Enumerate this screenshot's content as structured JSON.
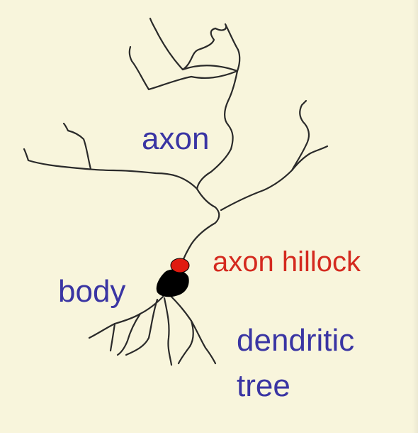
{
  "labels": {
    "axon": "axon",
    "axon_hillock": "axon hillock",
    "body": "body",
    "dendritic": "dendritic",
    "tree": "tree"
  },
  "colors": {
    "background": "#f8f5dc",
    "label_blue": "#3a35a3",
    "label_red": "#d42a1f",
    "neuron_line": "#2a2a2a",
    "cell_body": "#000000",
    "hillock_fill": "#e01b10"
  }
}
